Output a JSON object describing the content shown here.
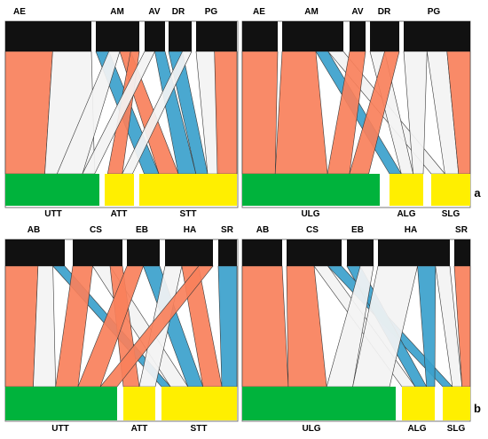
{
  "colors": {
    "background": "#ffffff",
    "node_top": "#111111",
    "node_bottom_large": "#00b33c",
    "node_bottom_small": "#ffef00",
    "flow_orange": "#f9805b",
    "flow_blue": "#3ba1cc",
    "flow_light": "#f3f3f3",
    "flow_edge": "#3a3a3a",
    "frame": "#7a7a7a"
  },
  "panels": [
    {
      "id": "a-left",
      "top_labels": [
        "AE",
        "AM",
        "AV",
        "DR",
        "PG"
      ],
      "bottom_labels": [
        "UTT",
        "ATT",
        "STT"
      ],
      "bottom_colors": [
        "green",
        "yellow",
        "yellow"
      ]
    },
    {
      "id": "a-right",
      "top_labels": [
        "AE",
        "AM",
        "AV",
        "DR",
        "PG"
      ],
      "bottom_labels": [
        "ULG",
        "ALG",
        "SLG"
      ],
      "bottom_colors": [
        "green",
        "yellow",
        "yellow"
      ]
    },
    {
      "id": "b-left",
      "top_labels": [
        "AB",
        "CS",
        "EB",
        "HA",
        "SR"
      ],
      "bottom_labels": [
        "UTT",
        "ATT",
        "STT"
      ],
      "bottom_colors": [
        "green",
        "yellow",
        "yellow"
      ]
    },
    {
      "id": "b-right",
      "top_labels": [
        "AB",
        "CS",
        "EB",
        "HA",
        "SR"
      ],
      "bottom_labels": [
        "ULG",
        "ALG",
        "SLG"
      ],
      "bottom_colors": [
        "green",
        "yellow",
        "yellow"
      ]
    }
  ],
  "panel_letters": [
    "a",
    "b"
  ]
}
